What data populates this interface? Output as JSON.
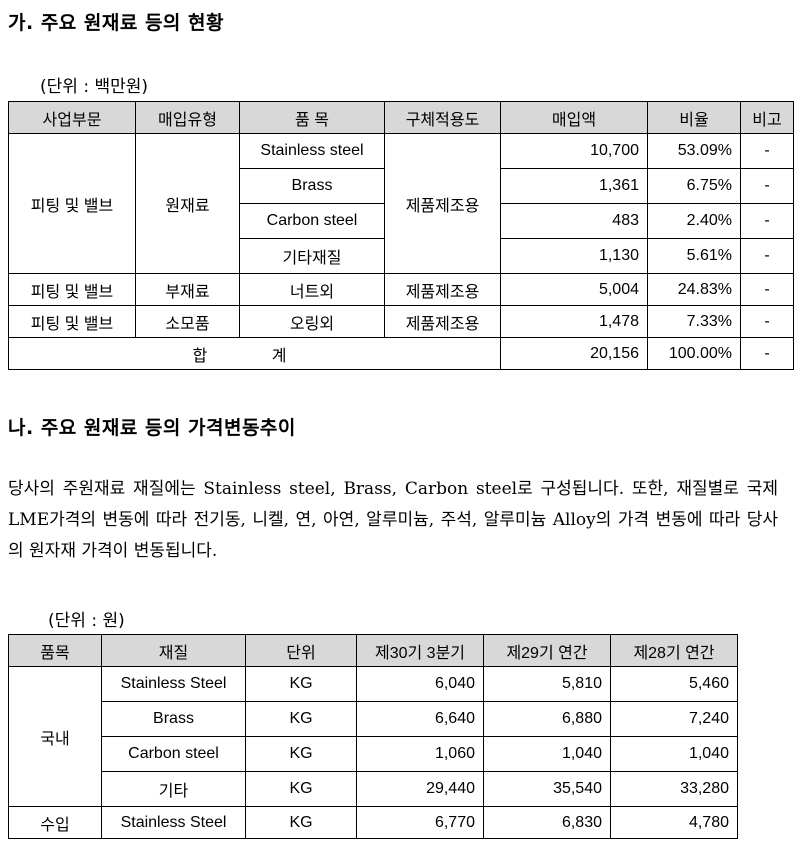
{
  "section_a": {
    "heading": "가. 주요 원재료 등의 현황",
    "unit": "(단위 : 백만원)",
    "headers": [
      "사업부문",
      "매입유형",
      "품 목",
      "구체적용도",
      "매입액",
      "비율",
      "비고"
    ],
    "group": {
      "division": "피팅 및 밸브",
      "type": "원재료",
      "usage": "제품제조용",
      "items": [
        {
          "name": "Stainless steel",
          "amount": "10,700",
          "ratio": "53.09%",
          "note": "-"
        },
        {
          "name": "Brass",
          "amount": "1,361",
          "ratio": "6.75%",
          "note": "-"
        },
        {
          "name": "Carbon steel",
          "amount": "483",
          "ratio": "2.40%",
          "note": "-"
        },
        {
          "name": "기타재질",
          "amount": "1,130",
          "ratio": "5.61%",
          "note": "-"
        }
      ]
    },
    "rows": [
      {
        "division": "피팅 및 밸브",
        "type": "부재료",
        "name": "너트외",
        "usage": "제품제조용",
        "amount": "5,004",
        "ratio": "24.83%",
        "note": "-"
      },
      {
        "division": "피팅 및 밸브",
        "type": "소모품",
        "name": "오링외",
        "usage": "제품제조용",
        "amount": "1,478",
        "ratio": "7.33%",
        "note": "-"
      }
    ],
    "total": {
      "label": "합 계",
      "amount": "20,156",
      "ratio": "100.00%",
      "note": "-"
    }
  },
  "section_b": {
    "heading": "나. 주요 원재료 등의 가격변동추이",
    "paragraph": "당사의 주원재료 재질에는 Stainless steel, Brass, Carbon steel로 구성됩니다. 또한, 재질별로 국제 LME가격의 변동에 따라 전기동, 니켈, 연, 아연, 알루미늄, 주석, 알루미늄 Alloy의 가격 변동에 따라 당사의 원자재 가격이 변동됩니다.",
    "unit": "(단위 : 원)",
    "headers": [
      "품목",
      "재질",
      "단위",
      "제30기 3분기",
      "제29기 연간",
      "제28기 연간"
    ],
    "domestic": {
      "label": "국내",
      "rows": [
        {
          "material": "Stainless Steel",
          "unit": "KG",
          "p30": "6,040",
          "p29": "5,810",
          "p28": "5,460"
        },
        {
          "material": "Brass",
          "unit": "KG",
          "p30": "6,640",
          "p29": "6,880",
          "p28": "7,240"
        },
        {
          "material": "Carbon steel",
          "unit": "KG",
          "p30": "1,060",
          "p29": "1,040",
          "p28": "1,040"
        },
        {
          "material": "기타",
          "unit": "KG",
          "p30": "29,440",
          "p29": "35,540",
          "p28": "33,280"
        }
      ]
    },
    "import": {
      "label": "수입",
      "material": "Stainless Steel",
      "unit": "KG",
      "p30": "6,770",
      "p29": "6,830",
      "p28": "4,780"
    }
  }
}
